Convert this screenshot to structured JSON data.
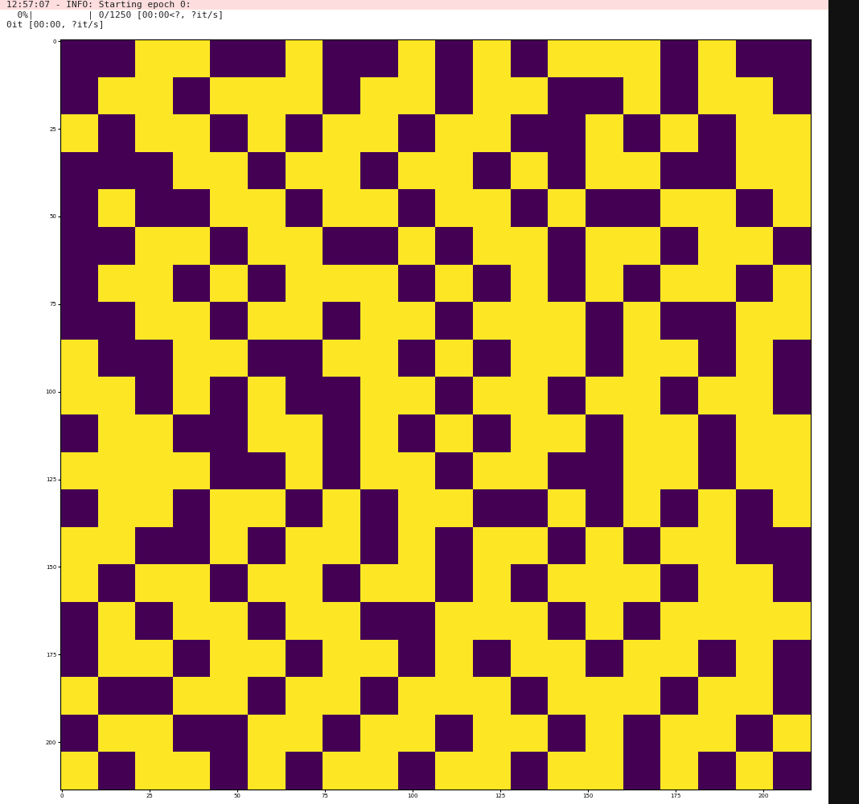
{
  "log_lines": [
    "12:57:07 - INFO: Starting epoch 0:",
    "  0%|          | 0/1250 [00:00<?, ?it/s]",
    "0it [00:00, ?it/s]"
  ],
  "chart_data": {
    "type": "heatmap",
    "xlim": [
      -0.5,
      213.5
    ],
    "ylim": [
      213.5,
      -0.5
    ],
    "xticks": [
      0,
      25,
      50,
      75,
      100,
      125,
      150,
      175,
      200
    ],
    "yticks": [
      0,
      25,
      50,
      75,
      100,
      125,
      150,
      175,
      200
    ],
    "cells": [
      [
        0,
        0,
        1,
        1,
        0,
        0,
        1,
        0,
        0,
        1,
        0,
        1,
        0,
        1,
        1,
        1,
        0,
        1,
        0,
        0
      ],
      [
        0,
        1,
        1,
        0,
        1,
        1,
        1,
        0,
        1,
        1,
        0,
        1,
        1,
        0,
        0,
        1,
        0,
        1,
        1,
        0
      ],
      [
        1,
        0,
        1,
        1,
        0,
        1,
        0,
        1,
        1,
        0,
        1,
        1,
        0,
        0,
        1,
        0,
        1,
        0,
        1,
        1
      ],
      [
        0,
        0,
        0,
        1,
        1,
        0,
        1,
        1,
        0,
        1,
        1,
        0,
        1,
        0,
        1,
        1,
        0,
        0,
        1,
        1
      ],
      [
        0,
        1,
        0,
        0,
        1,
        1,
        0,
        1,
        1,
        0,
        1,
        1,
        0,
        1,
        0,
        0,
        1,
        1,
        0,
        1
      ],
      [
        0,
        0,
        1,
        1,
        0,
        1,
        1,
        0,
        0,
        1,
        0,
        1,
        1,
        0,
        1,
        1,
        0,
        1,
        1,
        0
      ],
      [
        0,
        1,
        1,
        0,
        1,
        0,
        1,
        1,
        1,
        0,
        1,
        0,
        1,
        0,
        1,
        0,
        1,
        1,
        0,
        1
      ],
      [
        0,
        0,
        1,
        1,
        0,
        1,
        1,
        0,
        1,
        1,
        0,
        1,
        1,
        1,
        0,
        1,
        0,
        0,
        1,
        1
      ],
      [
        1,
        0,
        0,
        1,
        1,
        0,
        0,
        1,
        1,
        0,
        1,
        0,
        1,
        1,
        0,
        1,
        1,
        0,
        1,
        0
      ],
      [
        1,
        1,
        0,
        1,
        0,
        1,
        0,
        0,
        1,
        1,
        0,
        1,
        1,
        0,
        1,
        1,
        0,
        1,
        1,
        0
      ],
      [
        0,
        1,
        1,
        0,
        0,
        1,
        1,
        0,
        1,
        0,
        1,
        0,
        1,
        1,
        0,
        1,
        1,
        0,
        1,
        1
      ],
      [
        1,
        1,
        1,
        1,
        0,
        0,
        1,
        0,
        1,
        1,
        0,
        1,
        1,
        0,
        0,
        1,
        1,
        0,
        1,
        1
      ],
      [
        0,
        1,
        1,
        0,
        1,
        1,
        0,
        1,
        0,
        1,
        1,
        0,
        0,
        1,
        0,
        1,
        0,
        1,
        0,
        1
      ],
      [
        1,
        1,
        0,
        0,
        1,
        0,
        1,
        1,
        0,
        1,
        0,
        1,
        1,
        0,
        1,
        0,
        1,
        1,
        0,
        0
      ],
      [
        1,
        0,
        1,
        1,
        0,
        1,
        1,
        0,
        1,
        1,
        0,
        1,
        0,
        1,
        1,
        1,
        0,
        1,
        1,
        0
      ],
      [
        0,
        1,
        0,
        1,
        1,
        0,
        1,
        1,
        0,
        0,
        1,
        1,
        1,
        0,
        1,
        0,
        1,
        1,
        1,
        1
      ],
      [
        0,
        1,
        1,
        0,
        1,
        1,
        0,
        1,
        1,
        0,
        1,
        0,
        1,
        1,
        0,
        1,
        1,
        0,
        1,
        0
      ],
      [
        1,
        0,
        0,
        1,
        1,
        0,
        1,
        1,
        0,
        1,
        1,
        1,
        0,
        1,
        1,
        1,
        0,
        1,
        1,
        0
      ],
      [
        0,
        1,
        1,
        0,
        0,
        1,
        1,
        0,
        1,
        1,
        0,
        1,
        1,
        0,
        1,
        0,
        1,
        1,
        0,
        1
      ],
      [
        1,
        0,
        1,
        1,
        0,
        1,
        0,
        1,
        1,
        0,
        1,
        1,
        0,
        1,
        1,
        0,
        1,
        0,
        1,
        0
      ]
    ]
  }
}
